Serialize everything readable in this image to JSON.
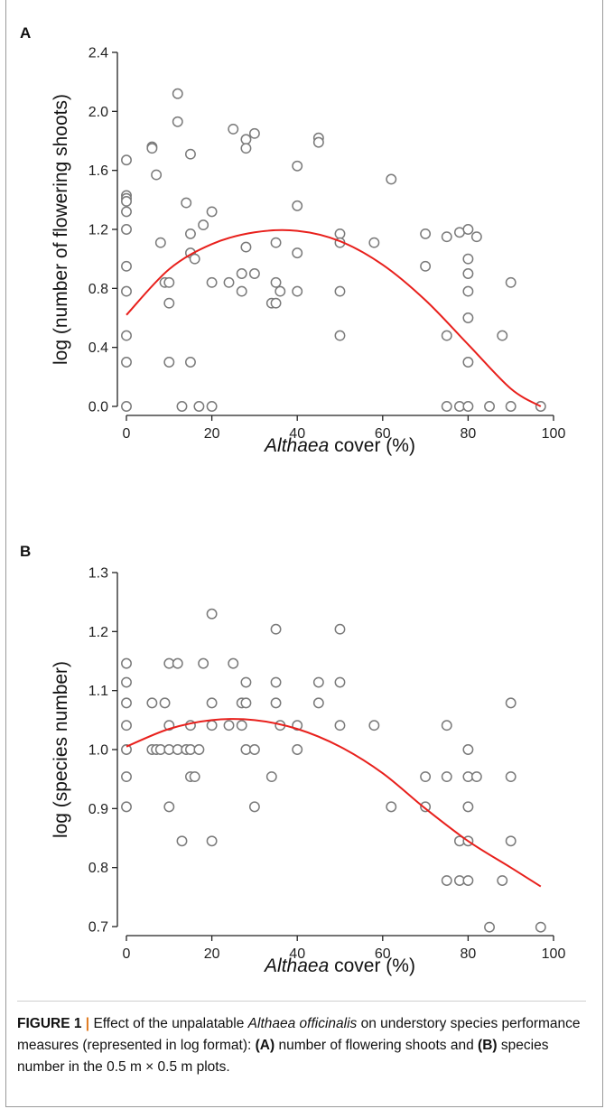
{
  "figure": {
    "caption": {
      "label": "FIGURE 1",
      "separator": "|",
      "text_1": " Effect of the unpalatable ",
      "species": "Althaea officinalis",
      "text_2": " on understory species performance measures (represented in log format): ",
      "label_a": "(A)",
      "text_3": " number of flowering shoots and ",
      "label_b": "(B)",
      "text_4": " species number in the 0.5 m × 0.5 m plots."
    }
  },
  "colors": {
    "marker_edge": "#7a7a7a",
    "fit_line": "#e8201c",
    "axis": "#222222"
  },
  "chart_data": [
    {
      "panel": "A",
      "type": "scatter",
      "xlabel_italic": "Althaea",
      "xlabel_rest": " cover (%)",
      "ylabel": "log (number of flowering shoots)",
      "xlim": [
        0,
        100
      ],
      "ylim": [
        0,
        2.4
      ],
      "xticks": [
        0,
        20,
        40,
        60,
        80,
        100
      ],
      "xtick_labels": [
        "0",
        "20",
        "40",
        "60",
        "80",
        "100"
      ],
      "yticks": [
        0,
        0.4,
        0.8,
        1.2,
        1.6,
        2.0,
        2.4
      ],
      "ytick_labels": [
        "0.0",
        "0.4",
        "0.8",
        "1.2",
        "1.6",
        "2.0",
        "2.4"
      ],
      "grid": false,
      "points": [
        [
          0,
          1.67
        ],
        [
          0,
          1.43
        ],
        [
          0,
          1.41
        ],
        [
          0,
          1.39
        ],
        [
          0,
          1.32
        ],
        [
          0,
          1.2
        ],
        [
          0,
          0.95
        ],
        [
          0,
          0.78
        ],
        [
          0,
          0.48
        ],
        [
          0,
          0.3
        ],
        [
          0,
          0.0
        ],
        [
          6,
          1.76
        ],
        [
          6,
          1.75
        ],
        [
          7,
          1.57
        ],
        [
          8,
          1.11
        ],
        [
          9,
          0.84
        ],
        [
          10,
          0.84
        ],
        [
          10,
          0.7
        ],
        [
          10,
          0.3
        ],
        [
          12,
          2.12
        ],
        [
          12,
          1.93
        ],
        [
          13,
          0.0
        ],
        [
          14,
          1.38
        ],
        [
          15,
          1.71
        ],
        [
          15,
          1.17
        ],
        [
          15,
          1.04
        ],
        [
          15,
          0.3
        ],
        [
          16,
          1.0
        ],
        [
          17,
          0.0
        ],
        [
          18,
          1.23
        ],
        [
          20,
          1.32
        ],
        [
          20,
          0.84
        ],
        [
          20,
          0.0
        ],
        [
          24,
          0.84
        ],
        [
          25,
          1.88
        ],
        [
          27,
          0.9
        ],
        [
          27,
          0.78
        ],
        [
          28,
          1.81
        ],
        [
          28,
          1.75
        ],
        [
          28,
          1.08
        ],
        [
          30,
          1.85
        ],
        [
          30,
          0.9
        ],
        [
          34,
          0.7
        ],
        [
          35,
          1.11
        ],
        [
          35,
          0.84
        ],
        [
          35,
          0.7
        ],
        [
          36,
          0.78
        ],
        [
          40,
          1.63
        ],
        [
          40,
          1.36
        ],
        [
          40,
          1.04
        ],
        [
          40,
          0.78
        ],
        [
          45,
          1.82
        ],
        [
          45,
          1.79
        ],
        [
          50,
          1.17
        ],
        [
          50,
          1.11
        ],
        [
          50,
          0.78
        ],
        [
          50,
          0.48
        ],
        [
          58,
          1.11
        ],
        [
          62,
          1.54
        ],
        [
          70,
          1.17
        ],
        [
          70,
          0.95
        ],
        [
          75,
          1.15
        ],
        [
          75,
          0.48
        ],
        [
          75,
          0.0
        ],
        [
          78,
          1.18
        ],
        [
          78,
          0.0
        ],
        [
          80,
          1.2
        ],
        [
          80,
          1.0
        ],
        [
          80,
          0.9
        ],
        [
          80,
          0.78
        ],
        [
          80,
          0.6
        ],
        [
          80,
          0.3
        ],
        [
          80,
          0.0
        ],
        [
          82,
          1.15
        ],
        [
          85,
          0.0
        ],
        [
          88,
          0.48
        ],
        [
          90,
          0.84
        ],
        [
          90,
          0.0
        ],
        [
          97,
          0.0
        ]
      ],
      "fit": {
        "type": "quadratic",
        "x_range": [
          0,
          97
        ],
        "curve": [
          [
            0,
            0.62
          ],
          [
            10,
            0.93
          ],
          [
            20,
            1.1
          ],
          [
            30,
            1.18
          ],
          [
            40,
            1.19
          ],
          [
            50,
            1.12
          ],
          [
            60,
            0.96
          ],
          [
            70,
            0.72
          ],
          [
            80,
            0.42
          ],
          [
            90,
            0.12
          ],
          [
            97,
            0.0
          ]
        ]
      }
    },
    {
      "panel": "B",
      "type": "scatter",
      "xlabel_italic": "Althaea",
      "xlabel_rest": " cover (%)",
      "ylabel": "log (species number)",
      "xlim": [
        0,
        100
      ],
      "ylim": [
        0.7,
        1.3
      ],
      "xticks": [
        0,
        20,
        40,
        60,
        80,
        100
      ],
      "xtick_labels": [
        "0",
        "20",
        "40",
        "60",
        "80",
        "100"
      ],
      "yticks": [
        0.7,
        0.8,
        0.9,
        1.0,
        1.1,
        1.2,
        1.3
      ],
      "ytick_labels": [
        "0.7",
        "0.8",
        "0.9",
        "1.0",
        "1.1",
        "1.2",
        "1.3"
      ],
      "grid": false,
      "points": [
        [
          0,
          1.146
        ],
        [
          0,
          1.114
        ],
        [
          0,
          1.079
        ],
        [
          0,
          1.041
        ],
        [
          0,
          1.0
        ],
        [
          0,
          0.954
        ],
        [
          0,
          0.903
        ],
        [
          6,
          1.079
        ],
        [
          6,
          1.0
        ],
        [
          7,
          1.0
        ],
        [
          8,
          1.0
        ],
        [
          9,
          1.079
        ],
        [
          10,
          1.146
        ],
        [
          10,
          1.041
        ],
        [
          10,
          1.0
        ],
        [
          10,
          0.903
        ],
        [
          12,
          1.146
        ],
        [
          12,
          1.0
        ],
        [
          13,
          0.845
        ],
        [
          14,
          1.0
        ],
        [
          15,
          1.041
        ],
        [
          15,
          1.0
        ],
        [
          15,
          0.954
        ],
        [
          16,
          0.954
        ],
        [
          17,
          1.0
        ],
        [
          18,
          1.146
        ],
        [
          20,
          1.23
        ],
        [
          20,
          1.079
        ],
        [
          20,
          1.041
        ],
        [
          20,
          0.845
        ],
        [
          24,
          1.041
        ],
        [
          25,
          1.146
        ],
        [
          27,
          1.079
        ],
        [
          27,
          1.041
        ],
        [
          28,
          1.114
        ],
        [
          28,
          1.079
        ],
        [
          28,
          1.0
        ],
        [
          30,
          1.0
        ],
        [
          30,
          0.903
        ],
        [
          34,
          0.954
        ],
        [
          35,
          1.204
        ],
        [
          35,
          1.114
        ],
        [
          35,
          1.079
        ],
        [
          36,
          1.041
        ],
        [
          40,
          1.041
        ],
        [
          40,
          1.0
        ],
        [
          45,
          1.114
        ],
        [
          45,
          1.079
        ],
        [
          50,
          1.204
        ],
        [
          50,
          1.114
        ],
        [
          50,
          1.041
        ],
        [
          58,
          1.041
        ],
        [
          62,
          0.903
        ],
        [
          70,
          0.954
        ],
        [
          70,
          0.903
        ],
        [
          75,
          1.041
        ],
        [
          75,
          0.954
        ],
        [
          75,
          0.778
        ],
        [
          78,
          0.845
        ],
        [
          78,
          0.778
        ],
        [
          80,
          1.0
        ],
        [
          80,
          0.954
        ],
        [
          80,
          0.903
        ],
        [
          80,
          0.845
        ],
        [
          80,
          0.778
        ],
        [
          82,
          0.954
        ],
        [
          85,
          0.699
        ],
        [
          88,
          0.778
        ],
        [
          90,
          1.079
        ],
        [
          90,
          0.954
        ],
        [
          90,
          0.845
        ],
        [
          97,
          0.699
        ]
      ],
      "fit": {
        "type": "quadratic",
        "x_range": [
          0,
          97
        ],
        "curve": [
          [
            0,
            1.005
          ],
          [
            10,
            1.035
          ],
          [
            20,
            1.05
          ],
          [
            30,
            1.05
          ],
          [
            40,
            1.035
          ],
          [
            50,
            1.005
          ],
          [
            60,
            0.96
          ],
          [
            70,
            0.9
          ],
          [
            80,
            0.845
          ],
          [
            90,
            0.8
          ],
          [
            97,
            0.768
          ]
        ]
      }
    }
  ]
}
